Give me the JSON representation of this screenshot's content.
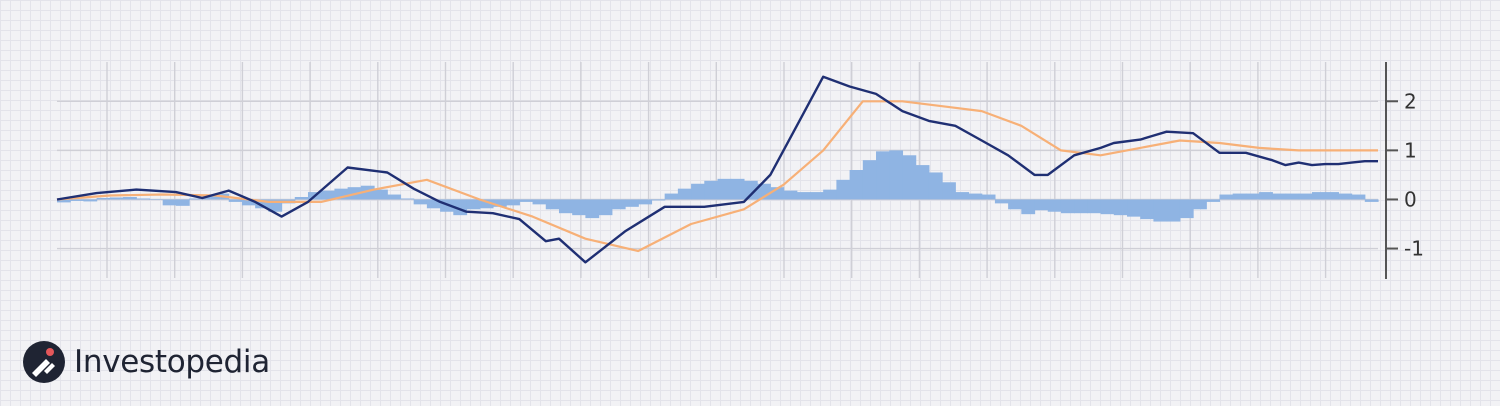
{
  "brand": {
    "name": "Investopedia"
  },
  "colors": {
    "macd": "#1f2f73",
    "signal": "#f7b077",
    "histogram": "#8fb4e3",
    "grid": "#cfcfd6",
    "axis": "#555555"
  },
  "chart_data": {
    "type": "line",
    "title": "",
    "xlabel": "",
    "ylabel": "",
    "ylim": [
      -1.6,
      2.8
    ],
    "yticks": [
      2,
      1,
      0,
      -1
    ],
    "ytick_labels": [
      "2",
      "1",
      "0",
      "-1"
    ],
    "x_range": [
      0,
      100
    ],
    "grid": true,
    "series": [
      {
        "kind": "line",
        "color": "#1f2f73",
        "x": [
          0,
          3,
          6,
          9,
          11,
          13,
          15,
          17,
          19,
          22,
          25,
          27,
          29,
          31,
          33,
          35,
          37,
          38,
          40,
          43,
          46,
          49,
          52,
          54,
          56,
          58,
          60,
          62,
          64,
          66,
          68,
          70,
          72,
          74,
          75,
          77,
          79,
          80,
          82,
          83,
          84,
          86,
          88,
          90,
          92,
          93,
          94,
          95,
          96,
          97,
          98,
          99,
          100
        ],
        "y": [
          0.0,
          0.13,
          0.2,
          0.15,
          0.03,
          0.18,
          -0.05,
          -0.35,
          -0.05,
          0.65,
          0.55,
          0.22,
          -0.05,
          -0.25,
          -0.28,
          -0.4,
          -0.85,
          -0.8,
          -1.28,
          -0.65,
          -0.15,
          -0.15,
          -0.05,
          0.5,
          1.5,
          2.5,
          2.3,
          2.15,
          1.8,
          1.6,
          1.5,
          1.2,
          0.9,
          0.5,
          0.5,
          0.9,
          1.05,
          1.15,
          1.22,
          1.3,
          1.38,
          1.35,
          0.95,
          0.95,
          0.8,
          0.7,
          0.75,
          0.7,
          0.72,
          0.72,
          0.75,
          0.78,
          0.78
        ]
      },
      {
        "kind": "line",
        "color": "#f7b077",
        "x": [
          0,
          4,
          8,
          12,
          16,
          20,
          24,
          28,
          32,
          36,
          40,
          44,
          48,
          52,
          55,
          58,
          61,
          64,
          67,
          70,
          73,
          76,
          79,
          82,
          85,
          88,
          91,
          94,
          97,
          100
        ],
        "y": [
          0.0,
          0.08,
          0.1,
          0.08,
          -0.05,
          -0.05,
          0.2,
          0.4,
          0.0,
          -0.35,
          -0.8,
          -1.05,
          -0.5,
          -0.2,
          0.3,
          1.0,
          2.0,
          2.0,
          1.9,
          1.8,
          1.5,
          1.0,
          0.9,
          1.05,
          1.2,
          1.15,
          1.05,
          1.0,
          1.0,
          1.0
        ]
      },
      {
        "kind": "bar",
        "color": "#8fb4e3",
        "x": [
          0.5,
          1.5,
          2.5,
          3.5,
          4.5,
          5.5,
          6.5,
          7.5,
          8.5,
          9.5,
          10.5,
          11.5,
          12.5,
          13.5,
          14.5,
          15.5,
          16.5,
          17.5,
          18.5,
          19.5,
          20.5,
          21.5,
          22.5,
          23.5,
          24.5,
          25.5,
          26.5,
          27.5,
          28.5,
          29.5,
          30.5,
          31.5,
          32.5,
          33.5,
          34.5,
          35.5,
          36.5,
          37.5,
          38.5,
          39.5,
          40.5,
          41.5,
          42.5,
          43.5,
          44.5,
          45.5,
          46.5,
          47.5,
          48.5,
          49.5,
          50.5,
          51.5,
          52.5,
          53.5,
          54.5,
          55.5,
          56.5,
          57.5,
          58.5,
          59.5,
          60.5,
          61.5,
          62.5,
          63.5,
          64.5,
          65.5,
          66.5,
          67.5,
          68.5,
          69.5,
          70.5,
          71.5,
          72.5,
          73.5,
          74.5,
          75.5,
          76.5,
          77.5,
          78.5,
          79.5,
          80.5,
          81.5,
          82.5,
          83.5,
          84.5,
          85.5,
          86.5,
          87.5,
          88.5,
          89.5,
          90.5,
          91.5,
          92.5,
          93.5,
          94.5,
          95.5,
          96.5,
          97.5,
          98.5,
          99.5
        ],
        "y": [
          -0.06,
          -0.03,
          -0.04,
          0.03,
          0.04,
          0.05,
          0.02,
          0.0,
          -0.12,
          -0.13,
          0.02,
          0.06,
          0.12,
          -0.05,
          -0.12,
          -0.18,
          -0.25,
          -0.08,
          0.05,
          0.15,
          0.18,
          0.22,
          0.25,
          0.28,
          0.2,
          0.1,
          0.02,
          -0.1,
          -0.18,
          -0.25,
          -0.32,
          -0.2,
          -0.18,
          -0.15,
          -0.12,
          -0.05,
          -0.1,
          -0.2,
          -0.28,
          -0.32,
          -0.38,
          -0.32,
          -0.2,
          -0.15,
          -0.1,
          -0.02,
          0.12,
          0.22,
          0.32,
          0.38,
          0.42,
          0.42,
          0.38,
          0.32,
          0.25,
          0.18,
          0.15,
          0.15,
          0.2,
          0.4,
          0.6,
          0.8,
          0.98,
          1.0,
          0.9,
          0.7,
          0.55,
          0.35,
          0.15,
          0.12,
          0.1,
          -0.08,
          -0.2,
          -0.3,
          -0.22,
          -0.25,
          -0.28,
          -0.28,
          -0.28,
          -0.3,
          -0.32,
          -0.35,
          -0.4,
          -0.45,
          -0.45,
          -0.38,
          -0.2,
          -0.05,
          0.1,
          0.12,
          0.12,
          0.15,
          0.12,
          0.12,
          0.12,
          0.15,
          0.15,
          0.12,
          0.1,
          -0.05
        ]
      }
    ]
  }
}
